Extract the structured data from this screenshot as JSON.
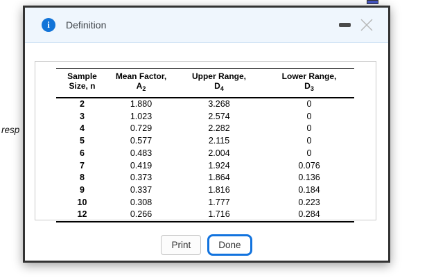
{
  "page": {
    "background_partial_text": "resp"
  },
  "dialog": {
    "title": "Definition",
    "info_icon_glyph": "i",
    "table": {
      "header": [
        {
          "line1": "Sample",
          "line2": "Size, n",
          "symbol": "",
          "subscript": ""
        },
        {
          "line1": "Mean Factor,",
          "symbol": "A",
          "subscript": "2"
        },
        {
          "line1": "Upper Range,",
          "symbol": "D",
          "subscript": "4"
        },
        {
          "line1": "Lower Range,",
          "symbol": "D",
          "subscript": "3"
        }
      ],
      "rows": [
        [
          "2",
          "1.880",
          "3.268",
          "0"
        ],
        [
          "3",
          "1.023",
          "2.574",
          "0"
        ],
        [
          "4",
          "0.729",
          "2.282",
          "0"
        ],
        [
          "5",
          "0.577",
          "2.115",
          "0"
        ],
        [
          "6",
          "0.483",
          "2.004",
          "0"
        ],
        [
          "7",
          "0.419",
          "1.924",
          "0.076"
        ],
        [
          "8",
          "0.373",
          "1.864",
          "0.136"
        ],
        [
          "9",
          "0.337",
          "1.816",
          "0.184"
        ],
        [
          "10",
          "0.308",
          "1.777",
          "0.223"
        ],
        [
          "12",
          "0.266",
          "1.716",
          "0.284"
        ]
      ]
    },
    "buttons": {
      "print": "Print",
      "done": "Done"
    },
    "colors": {
      "accent_blue": "#1273de",
      "info_icon_blue": "#1274d8",
      "header_bg": "#eff6fd",
      "dialog_border": "#333333"
    }
  }
}
